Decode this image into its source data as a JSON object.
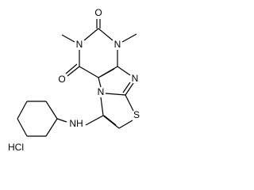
{
  "atoms": [
    "O",
    "N",
    "N",
    "O",
    "N",
    "N",
    "S",
    "NH"
  ],
  "salt": "HCl"
}
